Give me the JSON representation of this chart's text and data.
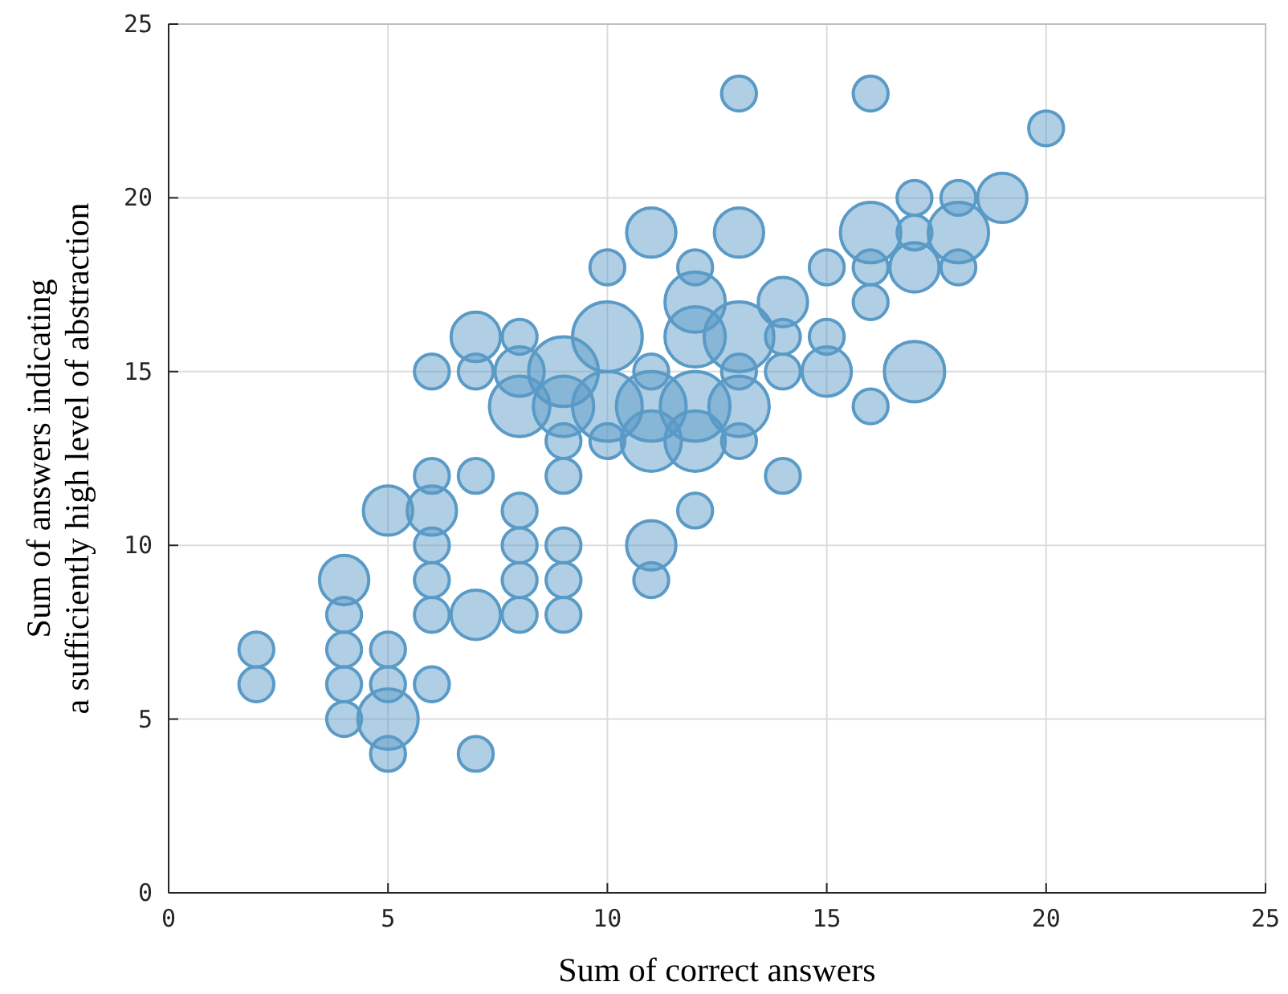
{
  "chart_data": {
    "type": "bubble",
    "xlabel": "Sum of correct answers",
    "ylabel": "Sum of answers indicating\na sufficiently high level of abstraction",
    "color": "#5a9ac6",
    "x": [
      2,
      2,
      4,
      4,
      4,
      4,
      4,
      5,
      5,
      5,
      5,
      5,
      6,
      6,
      6,
      6,
      6,
      6,
      6,
      7,
      7,
      7,
      7,
      7,
      8,
      8,
      8,
      8,
      8,
      8,
      8,
      9,
      9,
      9,
      9,
      9,
      9,
      9,
      10,
      10,
      10,
      10,
      11,
      11,
      11,
      11,
      11,
      11,
      12,
      12,
      12,
      12,
      12,
      12,
      13,
      13,
      13,
      13,
      13,
      13,
      14,
      14,
      14,
      14,
      15,
      15,
      15,
      16,
      16,
      16,
      16,
      16,
      17,
      17,
      17,
      17,
      18,
      18,
      18,
      19,
      20
    ],
    "values": [
      7,
      6,
      9,
      8,
      7,
      6,
      5,
      11,
      7,
      6,
      5,
      4,
      15,
      12,
      11,
      10,
      9,
      8,
      6,
      16,
      15,
      12,
      8,
      4,
      16,
      15,
      14,
      11,
      10,
      9,
      8,
      15,
      14,
      13,
      12,
      10,
      9,
      8,
      18,
      16,
      14,
      13,
      19,
      15,
      14,
      13,
      10,
      9,
      18,
      17,
      16,
      14,
      13,
      11,
      23,
      19,
      16,
      15,
      14,
      13,
      17,
      16,
      15,
      12,
      18,
      16,
      15,
      23,
      19,
      18,
      17,
      14,
      20,
      19,
      18,
      15,
      20,
      19,
      18,
      20,
      22
    ],
    "sizes": [
      0.25,
      0.25,
      0.5,
      0.25,
      0.25,
      0.25,
      0.25,
      0.5,
      0.25,
      0.25,
      0.75,
      0.25,
      0.25,
      0.25,
      0.5,
      0.25,
      0.25,
      0.25,
      0.25,
      0.5,
      0.25,
      0.25,
      0.5,
      0.25,
      0.25,
      0.5,
      0.75,
      0.25,
      0.25,
      0.25,
      0.25,
      1,
      0.75,
      0.25,
      0.25,
      0.25,
      0.25,
      0.25,
      0.25,
      1,
      1,
      0.25,
      0.5,
      0.25,
      1,
      0.75,
      0.5,
      0.25,
      0.25,
      0.75,
      0.75,
      1,
      0.75,
      0.25,
      0.25,
      0.5,
      1,
      0.25,
      0.75,
      0.25,
      0.5,
      0.25,
      0.25,
      0.25,
      0.25,
      0.25,
      0.5,
      0.25,
      0.75,
      0.25,
      0.25,
      0.25,
      0.25,
      0.25,
      0.5,
      0.75,
      0.25,
      0.75,
      0.25,
      0.5,
      0.25
    ],
    "xlim": [
      0,
      25
    ],
    "ylim": [
      0,
      25
    ],
    "xticks": [
      0,
      5,
      10,
      15,
      20,
      25
    ],
    "yticks": [
      0,
      5,
      10,
      15,
      20,
      25
    ],
    "grid": true
  }
}
